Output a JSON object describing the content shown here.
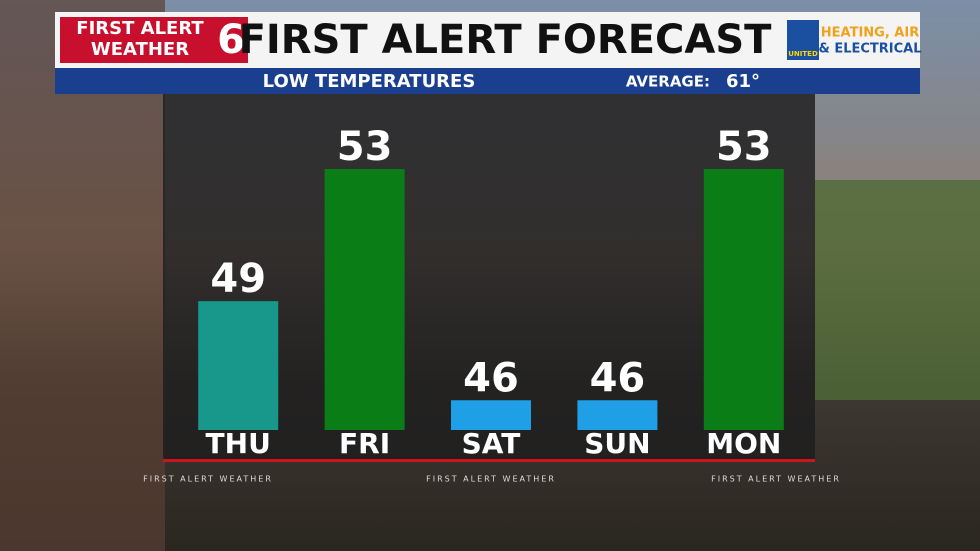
{
  "header": {
    "brand_top": "FIRST ALERT",
    "brand_bottom": "WEATHER",
    "channel": "6",
    "title": "FIRST ALERT FORECAST",
    "sponsor_top": "HEATING, AIR",
    "sponsor_bottom": "& ELECTRICAL",
    "sponsor_logo": "UNITED"
  },
  "chart_data": {
    "type": "bar",
    "title": "LOW TEMPERATURES",
    "average_label": "AVERAGE:",
    "average_value": "61°",
    "categories": [
      "THU",
      "FRI",
      "SAT",
      "SUN",
      "MON"
    ],
    "values": [
      49,
      53,
      46,
      46,
      53
    ],
    "colors": [
      "#17988a",
      "#0b7d17",
      "#1e9fe6",
      "#1e9fe6",
      "#0b7d17"
    ],
    "ylim": [
      45.1,
      53
    ]
  },
  "footer": [
    "FIRST ALERT WEATHER",
    "FIRST ALERT WEATHER",
    "FIRST ALERT WEATHER"
  ]
}
